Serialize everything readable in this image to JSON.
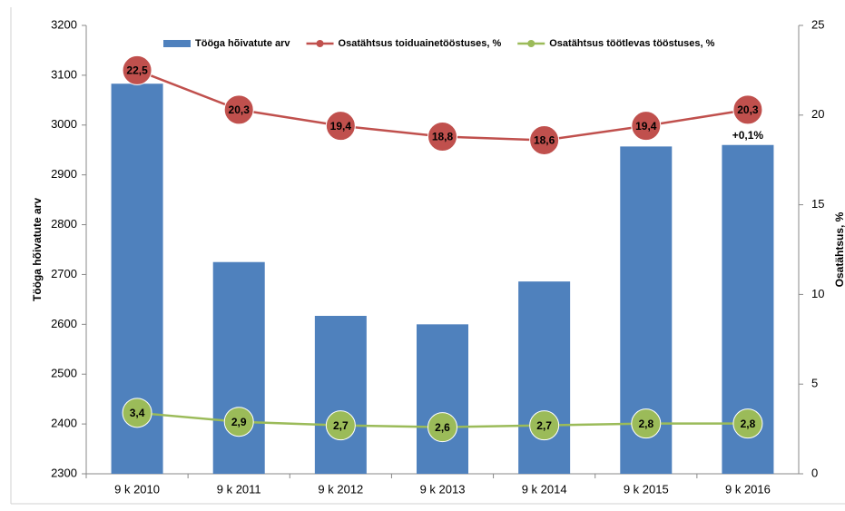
{
  "chart_data": {
    "type": "combo",
    "categories": [
      "9 k 2010",
      "9 k 2011",
      "9 k 2012",
      "9 k 2013",
      "9 k 2014",
      "9 k 2015",
      "9 k 2016"
    ],
    "y_label": "Tööga hõivatute arv",
    "y2_label": "Osatähtsus, %",
    "ylim": [
      2300,
      3200
    ],
    "yticks": [
      2300,
      2400,
      2500,
      2600,
      2700,
      2800,
      2900,
      3000,
      3100,
      3200
    ],
    "y2lim": [
      0,
      25
    ],
    "y2ticks": [
      0,
      5,
      10,
      15,
      20,
      25
    ],
    "series": [
      {
        "name": "Tööga hõivatute arv",
        "type": "bar",
        "color": "#4f81bd",
        "values": [
          3083,
          2725,
          2617,
          2600,
          2686,
          2957,
          2960
        ]
      },
      {
        "name": "Osatähtsus toiduainetööstuses, %",
        "type": "line",
        "axis": "y2",
        "color": "#c0504d",
        "values": [
          22.5,
          20.3,
          19.4,
          18.8,
          18.6,
          19.4,
          20.3
        ],
        "value_labels": [
          "22,5",
          "20,3",
          "19,4",
          "18,8",
          "18,6",
          "19,4",
          "20,3"
        ]
      },
      {
        "name": "Osatähtsus töötlevas tööstuses, %",
        "type": "line",
        "axis": "y2",
        "color": "#9bbb59",
        "values": [
          3.4,
          2.9,
          2.7,
          2.6,
          2.7,
          2.8,
          2.8
        ],
        "value_labels": [
          "3,4",
          "2,9",
          "2,7",
          "2,6",
          "2,7",
          "2,8",
          "2,8"
        ]
      }
    ],
    "annotations": [
      {
        "text": "+0,1%",
        "category": 6
      }
    ],
    "legend": "top"
  }
}
